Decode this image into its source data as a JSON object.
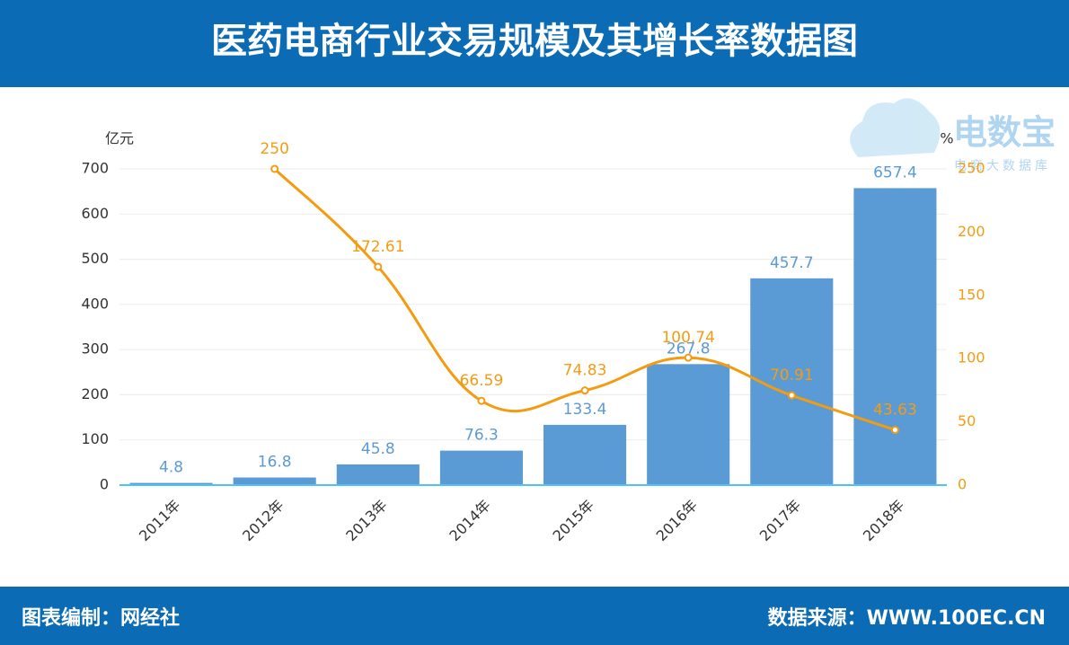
{
  "chart_data": {
    "type": "combo",
    "title": "医药电商行业交易规模及其增长率数据图",
    "y_label": "亿元",
    "y2_label": "%",
    "categories": [
      "2011年",
      "2012年",
      "2013年",
      "2014年",
      "2015年",
      "2016年",
      "2017年",
      "2018年"
    ],
    "series": [
      {
        "type": "bar",
        "color": "#5b9bd5",
        "label_color": "#5b9bd5",
        "values": [
          4.8,
          16.8,
          45.8,
          76.3,
          133.4,
          267.8,
          457.7,
          657.4
        ]
      },
      {
        "type": "line",
        "axis": "y2",
        "color": "#f39c12",
        "label_color": "#f39c12",
        "values": [
          null,
          250,
          172.61,
          66.59,
          74.83,
          100.74,
          70.91,
          43.63
        ]
      }
    ],
    "ylim": [
      0,
      700
    ],
    "yticks": [
      0,
      100,
      200,
      300,
      400,
      500,
      600,
      700
    ],
    "y2lim": [
      0,
      250
    ],
    "y2ticks": [
      0,
      50,
      100,
      150,
      200,
      250
    ],
    "grid": true
  },
  "watermark": {
    "title": "电数宝",
    "subtitle": "电商大数据库"
  },
  "footer": {
    "left": "图表编制：网经社",
    "right": "数据来源：WWW.100EC.CN"
  }
}
